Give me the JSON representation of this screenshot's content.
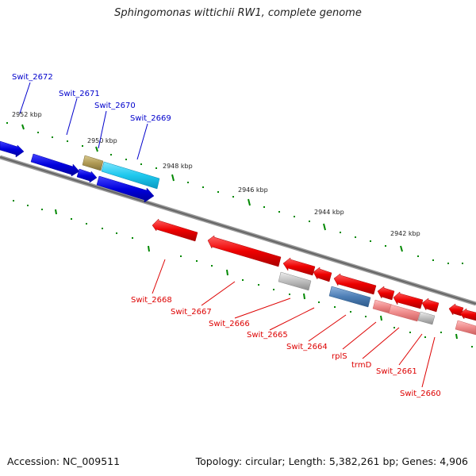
{
  "title": "Sphingomonas wittichii RW1, complete genome",
  "footer": {
    "accession": "Accession: NC_009511",
    "topology": "Topology: circular; Length: 5,382,261 bp; Genes: 4,906"
  },
  "ticks": [
    {
      "label": "2952 kbp"
    },
    {
      "label": "2950 kbp"
    },
    {
      "label": "2948 kbp"
    },
    {
      "label": "2946 kbp"
    },
    {
      "label": "2944 kbp"
    },
    {
      "label": "2942 kbp"
    }
  ],
  "forward_genes": [
    {
      "label": "Swit_2672",
      "color": "#0000dd"
    },
    {
      "label": "Swit_2671",
      "color": "#0000dd"
    },
    {
      "label": "Swit_2670",
      "color": "#b09a55"
    },
    {
      "label": "Swit_2669",
      "color": "#1ec8ee"
    }
  ],
  "reverse_genes": [
    {
      "label": "Swit_2668",
      "color": "#dd0000"
    },
    {
      "label": "Swit_2667",
      "color": "#dd0000"
    },
    {
      "label": "Swit_2666",
      "color": "#bdbdbd"
    },
    {
      "label": "Swit_2665",
      "color": "#dd0000"
    },
    {
      "label": "Swit_2664",
      "color": "#4d7eb5"
    },
    {
      "label": "rplS",
      "color": "#ee8a8a"
    },
    {
      "label": "trmD",
      "color": "#ee8a8a"
    },
    {
      "label": "Swit_2661",
      "color": "#bdbdbd"
    },
    {
      "label": "Swit_2660",
      "color": "#dd0000"
    }
  ]
}
